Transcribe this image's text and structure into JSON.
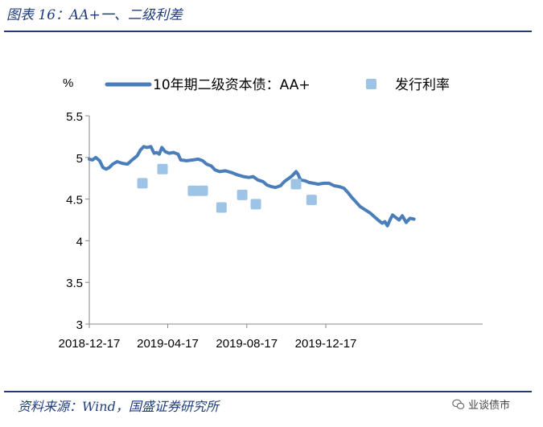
{
  "figure": {
    "title": "图表 16：AA+一、二级利差",
    "source": "资料来源：Wind，国盛证券研究所",
    "watermark": "业谈债市",
    "watermark_icon": "wechat-icon"
  },
  "chart_data": {
    "type": "line+scatter",
    "title": "图表 16：AA+一、二级利差",
    "ylabel": "%",
    "xlabel": "",
    "ylim": [
      3,
      5.5
    ],
    "yticks": [
      "5.5",
      "5",
      "4.5",
      "4",
      "3.5",
      "3"
    ],
    "ytick_values": [
      5.5,
      5,
      4.5,
      4,
      3.5,
      3
    ],
    "xlim": [
      "2018-12-17",
      "2020-08-15"
    ],
    "xticks": [
      "2018-12-17",
      "2019-04-17",
      "2019-08-17",
      "2019-12-17"
    ],
    "grid": false,
    "legend_position": "top",
    "colors": {
      "line": "#4a7ebb",
      "scatter": "#9dc3e6",
      "rules": "#1f3d7a"
    },
    "series": [
      {
        "name": "10年期二级资本债：AA+",
        "kind": "line",
        "points": [
          [
            "2018-12-17",
            4.98
          ],
          [
            "2018-12-22",
            4.97
          ],
          [
            "2018-12-27",
            5.0
          ],
          [
            "2019-01-02",
            4.96
          ],
          [
            "2019-01-07",
            4.88
          ],
          [
            "2019-01-12",
            4.86
          ],
          [
            "2019-01-17",
            4.88
          ],
          [
            "2019-01-22",
            4.92
          ],
          [
            "2019-01-29",
            4.95
          ],
          [
            "2019-02-06",
            4.93
          ],
          [
            "2019-02-14",
            4.92
          ],
          [
            "2019-02-21",
            4.97
          ],
          [
            "2019-03-01",
            5.02
          ],
          [
            "2019-03-06",
            5.09
          ],
          [
            "2019-03-11",
            5.13
          ],
          [
            "2019-03-16",
            5.12
          ],
          [
            "2019-03-22",
            5.13
          ],
          [
            "2019-03-27",
            5.05
          ],
          [
            "2019-03-31",
            5.06
          ],
          [
            "2019-04-04",
            5.04
          ],
          [
            "2019-04-08",
            5.12
          ],
          [
            "2019-04-13",
            5.07
          ],
          [
            "2019-04-19",
            5.05
          ],
          [
            "2019-04-26",
            5.06
          ],
          [
            "2019-05-03",
            5.04
          ],
          [
            "2019-05-07",
            4.97
          ],
          [
            "2019-05-16",
            4.96
          ],
          [
            "2019-05-26",
            4.97
          ],
          [
            "2019-06-03",
            4.98
          ],
          [
            "2019-06-10",
            4.96
          ],
          [
            "2019-06-16",
            4.92
          ],
          [
            "2019-06-23",
            4.9
          ],
          [
            "2019-06-29",
            4.85
          ],
          [
            "2019-07-06",
            4.83
          ],
          [
            "2019-07-15",
            4.84
          ],
          [
            "2019-07-24",
            4.82
          ],
          [
            "2019-08-03",
            4.79
          ],
          [
            "2019-08-12",
            4.77
          ],
          [
            "2019-08-20",
            4.76
          ],
          [
            "2019-08-27",
            4.77
          ],
          [
            "2019-09-03",
            4.73
          ],
          [
            "2019-09-11",
            4.71
          ],
          [
            "2019-09-17",
            4.67
          ],
          [
            "2019-09-24",
            4.65
          ],
          [
            "2019-09-30",
            4.64
          ],
          [
            "2019-10-08",
            4.66
          ],
          [
            "2019-10-14",
            4.71
          ],
          [
            "2019-10-21",
            4.75
          ],
          [
            "2019-10-26",
            4.78
          ],
          [
            "2019-11-01",
            4.83
          ],
          [
            "2019-11-04",
            4.8
          ],
          [
            "2019-11-08",
            4.73
          ],
          [
            "2019-11-15",
            4.72
          ],
          [
            "2019-11-21",
            4.7
          ],
          [
            "2019-11-28",
            4.69
          ],
          [
            "2019-12-05",
            4.68
          ],
          [
            "2019-12-14",
            4.69
          ],
          [
            "2019-12-22",
            4.69
          ],
          [
            "2019-12-30",
            4.66
          ],
          [
            "2020-01-07",
            4.65
          ],
          [
            "2020-01-14",
            4.63
          ],
          [
            "2020-01-20",
            4.58
          ],
          [
            "2020-01-26",
            4.52
          ],
          [
            "2020-02-01",
            4.47
          ],
          [
            "2020-02-08",
            4.41
          ],
          [
            "2020-02-16",
            4.37
          ],
          [
            "2020-02-24",
            4.33
          ],
          [
            "2020-03-02",
            4.28
          ],
          [
            "2020-03-08",
            4.24
          ],
          [
            "2020-03-13",
            4.21
          ],
          [
            "2020-03-17",
            4.23
          ],
          [
            "2020-03-21",
            4.18
          ],
          [
            "2020-03-25",
            4.25
          ],
          [
            "2020-03-29",
            4.31
          ],
          [
            "2020-04-03",
            4.28
          ],
          [
            "2020-04-08",
            4.25
          ],
          [
            "2020-04-13",
            4.3
          ],
          [
            "2020-04-19",
            4.22
          ],
          [
            "2020-04-25",
            4.27
          ],
          [
            "2020-05-01",
            4.26
          ]
        ]
      },
      {
        "name": "发行利率",
        "kind": "scatter",
        "points": [
          [
            "2019-03-09",
            4.69
          ],
          [
            "2019-04-09",
            4.86
          ],
          [
            "2019-05-26",
            4.6
          ],
          [
            "2019-06-10",
            4.6
          ],
          [
            "2019-07-09",
            4.4
          ],
          [
            "2019-08-10",
            4.55
          ],
          [
            "2019-08-31",
            4.44
          ],
          [
            "2019-11-01",
            4.68
          ],
          [
            "2019-11-25",
            4.49
          ]
        ]
      }
    ]
  }
}
